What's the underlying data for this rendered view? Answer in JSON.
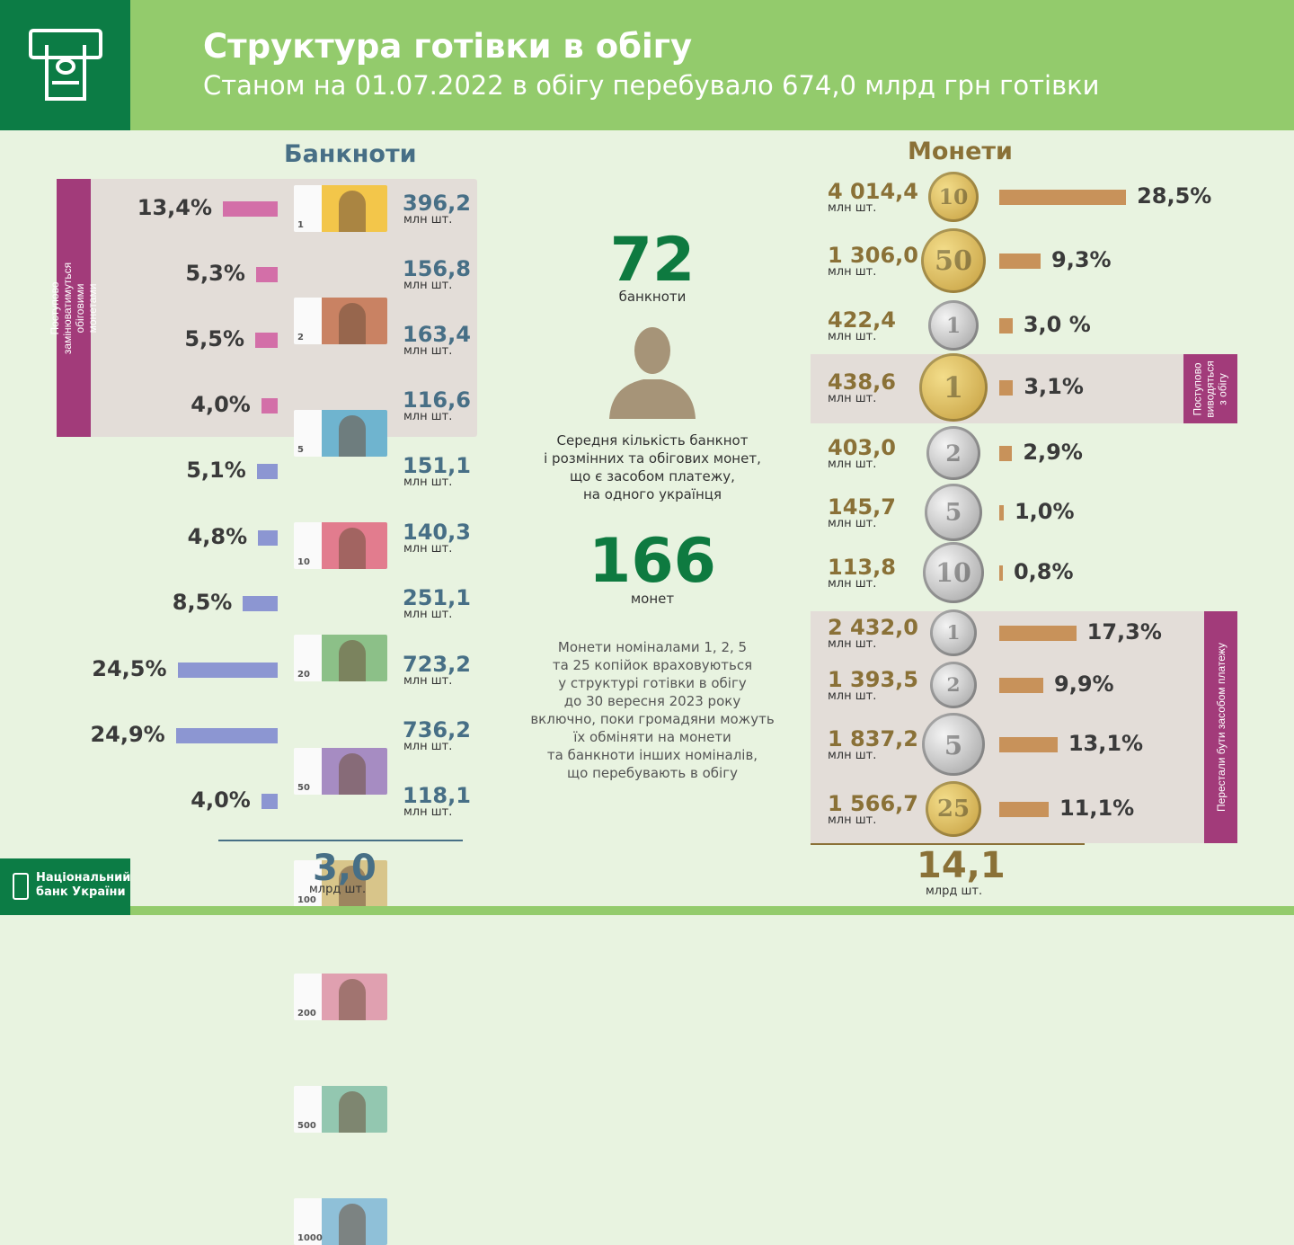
{
  "header": {
    "title": "Структура готівки в обігу",
    "subtitle": "Станом на 01.07.2022 в обігу перебувало 674,0 млрд грн готівки",
    "logo_icon": "atm-cash-icon"
  },
  "banknotes": {
    "title": "Банкноти",
    "side_label": "Поступово замінюватимуться обіговими монетами",
    "unit": "млн шт.",
    "total": "3,0",
    "total_unit": "млрд шт.",
    "items": [
      {
        "denom": "1",
        "pct": "13,4%",
        "value": "396,2",
        "color": "#f3c64a"
      },
      {
        "denom": "2",
        "pct": "5,3%",
        "value": "156,8",
        "color": "#c98263"
      },
      {
        "denom": "5",
        "pct": "5,5%",
        "value": "163,4",
        "color": "#6fb4cf"
      },
      {
        "denom": "10",
        "pct": "4,0%",
        "value": "116,6",
        "color": "#e27c8e"
      },
      {
        "denom": "20",
        "pct": "5,1%",
        "value": "151,1",
        "color": "#8cc088"
      },
      {
        "denom": "50",
        "pct": "4,8%",
        "value": "140,3",
        "color": "#a68cc2"
      },
      {
        "denom": "100",
        "pct": "8,5%",
        "value": "251,1",
        "color": "#d8c58a"
      },
      {
        "denom": "200",
        "pct": "24,5%",
        "value": "723,2",
        "color": "#e0a0b0"
      },
      {
        "denom": "500",
        "pct": "24,9%",
        "value": "736,2",
        "color": "#93c7b0"
      },
      {
        "denom": "1000",
        "pct": "4,0%",
        "value": "118,1",
        "color": "#8fc0d8"
      }
    ]
  },
  "coins": {
    "title": "Монети",
    "side_label_1": "Поступово виводяться з обігу",
    "side_label_2": "Перестали бути засобом платежу",
    "unit": "млн шт.",
    "total": "14,1",
    "total_unit": "млрд шт.",
    "items": [
      {
        "denom": "10",
        "pct": "28,5%",
        "value": "4 014,4",
        "metal": "gold"
      },
      {
        "denom": "50",
        "pct": "9,3%",
        "value": "1 306,0",
        "metal": "gold"
      },
      {
        "denom": "1",
        "pct": "3,0 %",
        "value": "422,4",
        "metal": "silver"
      },
      {
        "denom": "1",
        "pct": "3,1%",
        "value": "438,6",
        "metal": "gold"
      },
      {
        "denom": "2",
        "pct": "2,9%",
        "value": "403,0",
        "metal": "silver"
      },
      {
        "denom": "5",
        "pct": "1,0%",
        "value": "145,7",
        "metal": "silver"
      },
      {
        "denom": "10",
        "pct": "0,8%",
        "value": "113,8",
        "metal": "silver"
      },
      {
        "denom": "1",
        "pct": "17,3%",
        "value": "2 432,0",
        "metal": "silver"
      },
      {
        "denom": "2",
        "pct": "9,9%",
        "value": "1 393,5",
        "metal": "silver"
      },
      {
        "denom": "5",
        "pct": "13,1%",
        "value": "1 837,2",
        "metal": "silver"
      },
      {
        "denom": "25",
        "pct": "11,1%",
        "value": "1 566,7",
        "metal": "gold"
      }
    ]
  },
  "center": {
    "banknotes_count": "72",
    "banknotes_label": "банкноти",
    "avatar_icon": "person-silhouette-icon",
    "caption": [
      "Середня кількість банкнот",
      "і розмінних та обігових монет,",
      "що є засобом платежу,",
      "на одного українця"
    ],
    "coins_count": "166",
    "coins_label": "монет",
    "note": [
      "Монети  номіналами 1, 2, 5",
      "та 25 копійок враховуються",
      "у структурі готівки в обігу",
      "до 30 вересня 2023 року",
      "включно, поки громадяни можуть",
      "їх обміняти на монети",
      "та банкноти інших номіналів,",
      "що перебувають  в  обігу"
    ]
  },
  "footer": {
    "bank_name_1": "Національний",
    "bank_name_2": "банк України"
  },
  "colors": {
    "header": "#93cb6c",
    "dark_green": "#0c7c45",
    "pink_bar": "#d36fa8",
    "blue_bar": "#8c96d2",
    "coin_bar": "#c8925a",
    "purple": "#a23b7a",
    "panel": "#e3ddd8"
  },
  "chart_data": [
    {
      "type": "bar",
      "title": "Банкноти",
      "categories": [
        "1",
        "2",
        "5",
        "10",
        "20",
        "50",
        "100",
        "200",
        "500",
        "1000"
      ],
      "values": [
        13.4,
        5.3,
        5.5,
        4.0,
        5.1,
        4.8,
        8.5,
        24.5,
        24.9,
        4.0
      ],
      "counts_mln": [
        396.2,
        156.8,
        163.4,
        116.6,
        151.1,
        140.3,
        251.1,
        723.2,
        736.2,
        118.1
      ],
      "unit": "%",
      "orientation": "horizontal"
    },
    {
      "type": "bar",
      "title": "Монети",
      "categories": [
        "10 коп",
        "50 коп",
        "1 грн",
        "1 грн",
        "2 грн",
        "5 грн",
        "10 грн",
        "1 коп",
        "2 коп",
        "5 коп",
        "25 коп"
      ],
      "values": [
        28.5,
        9.3,
        3.0,
        3.1,
        2.9,
        1.0,
        0.8,
        17.3,
        9.9,
        13.1,
        11.1
      ],
      "counts_mln": [
        4014.4,
        1306.0,
        422.4,
        438.6,
        403.0,
        145.7,
        113.8,
        2432.0,
        1393.5,
        1837.2,
        1566.7
      ],
      "unit": "%",
      "orientation": "horizontal"
    }
  ]
}
